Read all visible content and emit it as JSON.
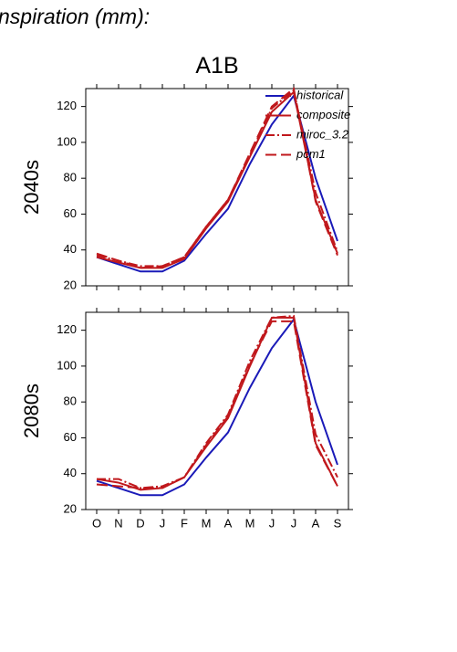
{
  "title": "nspiration (mm):",
  "subtitle": "A1B",
  "chart_data": [
    {
      "type": "line",
      "row_label": "2040s",
      "categories": [
        null,
        null,
        null,
        null,
        null,
        null,
        null,
        null,
        null,
        null,
        null,
        null
      ],
      "ylim": [
        20,
        130
      ],
      "yticks": [
        20,
        40,
        60,
        80,
        100,
        120
      ],
      "legend": "upper right",
      "series": [
        {
          "name": "historical",
          "color": "#1a1ab8",
          "style": "solid",
          "values": [
            36,
            32,
            28,
            28,
            34,
            49,
            63,
            88,
            110,
            126,
            80,
            45
          ]
        },
        {
          "name": "composite",
          "color": "#c0181c",
          "style": "solid",
          "values": [
            36,
            33,
            30,
            30,
            35,
            52,
            67,
            92,
            117,
            128,
            68,
            38
          ]
        },
        {
          "name": "miroc_3.2",
          "color": "#c0181c",
          "style": "dashdot",
          "values": [
            37,
            34,
            31,
            31,
            36,
            53,
            68,
            93,
            119,
            129,
            72,
            39
          ]
        },
        {
          "name": "pcm1",
          "color": "#c0181c",
          "style": "dashed",
          "values": [
            38,
            34,
            30,
            31,
            36,
            53,
            68,
            94,
            120,
            130,
            67,
            37
          ]
        }
      ]
    },
    {
      "type": "line",
      "row_label": "2080s",
      "categories": [
        "O",
        "N",
        "D",
        "J",
        "F",
        "M",
        "A",
        "M",
        "J",
        "J",
        "A",
        "S"
      ],
      "ylim": [
        20,
        130
      ],
      "yticks": [
        20,
        40,
        60,
        80,
        100,
        120
      ],
      "series": [
        {
          "color": "#1a1ab8",
          "style": "solid",
          "values": [
            36,
            32,
            28,
            28,
            34,
            49,
            63,
            88,
            110,
            126,
            80,
            45
          ]
        },
        {
          "color": "#c0181c",
          "style": "solid",
          "values": [
            37,
            35,
            31,
            32,
            38,
            55,
            71,
            100,
            127,
            127,
            57,
            33
          ]
        },
        {
          "color": "#c0181c",
          "style": "dashdot",
          "values": [
            37,
            37,
            32,
            33,
            38,
            57,
            73,
            103,
            127,
            128,
            62,
            38
          ]
        },
        {
          "color": "#c0181c",
          "style": "dashed",
          "values": [
            34,
            33,
            32,
            32,
            38,
            56,
            72,
            101,
            125,
            125,
            56,
            33
          ]
        }
      ]
    }
  ]
}
